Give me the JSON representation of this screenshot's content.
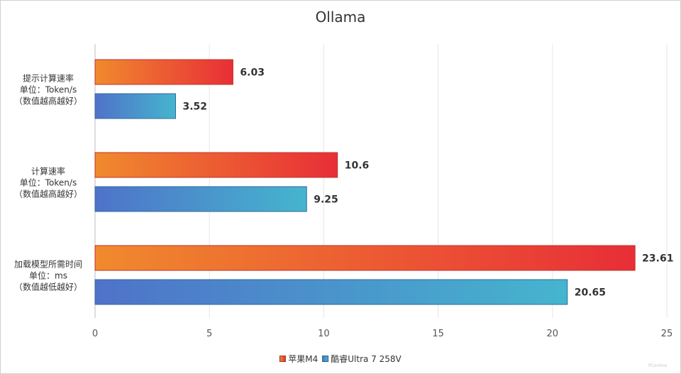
{
  "chart_data": {
    "type": "bar",
    "orientation": "horizontal",
    "title": "Ollama",
    "categories": [
      [
        "提示计算速率",
        "单位：Token/s",
        "（数值越高越好）"
      ],
      [
        "计算速率",
        "单位：Token/s",
        "（数值越高越好）"
      ],
      [
        "加载模型所需时间",
        "单位：ms",
        "（数值越低越好）"
      ]
    ],
    "series": [
      {
        "name": "苹果M4",
        "values": [
          6.03,
          10.6,
          23.61
        ],
        "gradient": [
          "#f08a2e",
          "#e82e37"
        ],
        "border": "#c0302a"
      },
      {
        "name": "酷睿Ultra 7 258V",
        "values": [
          3.52,
          9.25,
          20.65
        ],
        "gradient": [
          "#4f72c9",
          "#45b5ce"
        ],
        "border": "#2f6a9a"
      }
    ],
    "value_labels": [
      [
        "6.03",
        "10.6",
        "23.61"
      ],
      [
        "3.52",
        "9.25",
        "20.65"
      ]
    ],
    "xlim": [
      0,
      25
    ],
    "xticks": [
      0,
      5,
      10,
      15,
      20,
      25
    ],
    "grid": true,
    "legend": "bottom-center"
  },
  "watermark": "PConline"
}
